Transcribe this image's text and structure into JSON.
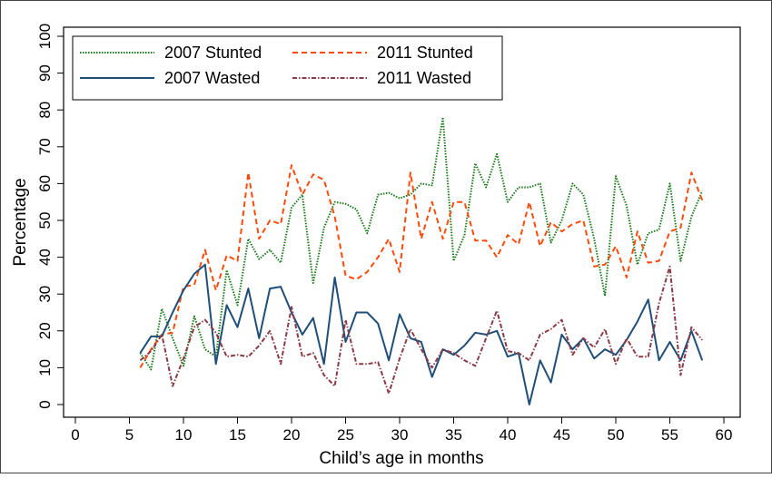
{
  "chart_data": {
    "type": "line",
    "title": "",
    "xlabel": "Child’s age in months",
    "ylabel": "Percentage",
    "xlim": [
      0,
      60
    ],
    "ylim": [
      0,
      100
    ],
    "xticks": [
      0,
      5,
      10,
      15,
      20,
      25,
      30,
      35,
      40,
      45,
      50,
      55,
      60
    ],
    "yticks": [
      0,
      10,
      20,
      30,
      40,
      50,
      60,
      70,
      80,
      90,
      100
    ],
    "grid": false,
    "legend_placement": "top-left",
    "x": [
      6,
      7,
      8,
      9,
      10,
      11,
      12,
      13,
      14,
      15,
      16,
      17,
      18,
      19,
      20,
      21,
      22,
      23,
      24,
      25,
      26,
      27,
      28,
      29,
      30,
      31,
      32,
      33,
      34,
      35,
      36,
      37,
      38,
      39,
      40,
      41,
      42,
      43,
      44,
      45,
      46,
      47,
      48,
      49,
      50,
      51,
      52,
      53,
      54,
      55,
      56,
      57,
      58
    ],
    "series": [
      {
        "name": "2007 Stunted",
        "color": "#1a7a1a",
        "style": "dotted",
        "values": [
          14,
          9.5,
          26,
          18,
          10.5,
          24,
          15,
          13,
          36.5,
          27,
          45,
          39.5,
          42,
          38.5,
          53.5,
          57,
          33,
          48,
          55,
          54.5,
          53,
          46.5,
          57,
          57.5,
          56,
          57,
          60,
          59.5,
          78,
          39,
          46,
          65.5,
          59,
          68,
          55,
          59,
          59,
          60,
          44,
          50,
          60,
          57,
          45,
          29.5,
          62,
          54,
          38,
          46.5,
          47.5,
          60,
          39,
          51,
          58
        ]
      },
      {
        "name": "2011 Stunted",
        "color": "#ff4a0a",
        "style": "dashed",
        "values": [
          10,
          15,
          19,
          19.5,
          32,
          32.5,
          42,
          31,
          40.5,
          39,
          63,
          45,
          50,
          49,
          65,
          57,
          62.5,
          61,
          51,
          35,
          34,
          36,
          40,
          45,
          36,
          63,
          45,
          55,
          45,
          55,
          55,
          44.5,
          44.5,
          40,
          46,
          43.5,
          55,
          43,
          49.5,
          47,
          49,
          50,
          37.5,
          38,
          43,
          34.5,
          47,
          38.5,
          39,
          47,
          48,
          63,
          55.5
        ]
      },
      {
        "name": "2007 Wasted",
        "color": "#1f4e79",
        "style": "solid",
        "values": [
          14,
          18.5,
          18.5,
          25,
          31,
          35.5,
          38,
          11,
          27,
          21,
          31.5,
          18,
          31.5,
          32,
          25,
          19,
          23.5,
          11,
          34.5,
          17,
          25,
          25,
          22,
          12,
          24.5,
          18,
          17,
          7.5,
          15,
          13.5,
          16,
          19.5,
          19,
          20,
          13,
          14,
          0,
          12,
          6,
          19,
          15,
          18,
          12.5,
          15,
          13.5,
          17.5,
          22.5,
          28.5,
          12,
          17,
          12,
          20,
          12
        ]
      },
      {
        "name": "2011 Wasted",
        "color": "#8b3a46",
        "style": "dashdot",
        "values": [
          12,
          14.5,
          19,
          5,
          12.5,
          21,
          23,
          19.5,
          13,
          13.5,
          13,
          16,
          20,
          11,
          26.5,
          13,
          14,
          8,
          5,
          23,
          11,
          11,
          11.5,
          3,
          12.5,
          20.5,
          15,
          10,
          15,
          14,
          12,
          10.5,
          18,
          25.5,
          14.5,
          14,
          12,
          19,
          20.5,
          23,
          13.5,
          18,
          15.5,
          20.5,
          11,
          18,
          13,
          13,
          27.5,
          37.5,
          8,
          21,
          17.5
        ]
      }
    ]
  }
}
